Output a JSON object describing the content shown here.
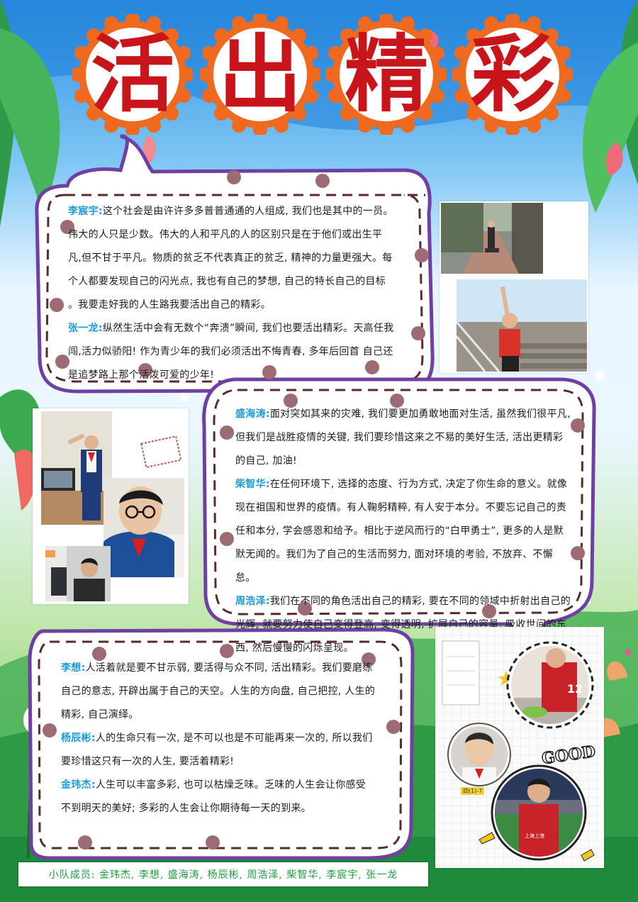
{
  "title": {
    "chars": [
      "活",
      "出",
      "精",
      "彩"
    ]
  },
  "colors": {
    "title_red": "#c8141b",
    "gear_orange": "#ef6a1f",
    "name_blue": "#1a9bd7",
    "frame_purple": "#6f3fa3",
    "dot_mauve": "#9c6b73",
    "footer_green": "#1e9c3e"
  },
  "box1": {
    "entries": [
      {
        "name": "李宸宇:",
        "text": "这个社会是由许许多多普普通通的人组成, 我们也是其中的一员。伟大的人只是少数。伟大的人和平凡的人的区别只是在于他们或出生平凡,但不甘于平凡。物质的贫乏不代表真正的贫乏, 精神的力量更强大。每个人都要发现自己的闪光点, 我也有自己的梦想, 自己的特长自己的目标 。我要走好我的人生路我要活出自己的精彩。"
      },
      {
        "name": "张一龙:",
        "text": "纵然生活中会有无数个“奔溃”瞬间, 我们也要活出精彩。天高任我闯,活力似骄阳! 作为青少年的我们必须活出不悔青春, 多年后回首 自己还是追梦路上那个活泼可爱的少年!"
      }
    ]
  },
  "box2": {
    "entries": [
      {
        "name": "盛海涛:",
        "text": "面对突如其来的灾难, 我们要更加勇敢地面对生活, 虽然我们很平凡, 但我们是战胜疫情的关键, 我们要珍惜这来之不易的美好生活, 活出更精彩的自己, 加油!"
      },
      {
        "name": "柴智华:",
        "text": "在任何环境下, 选择的态度、行为方式, 决定了你生命的意义。就像现在祖国和世界的疫情。有人鞠躬精粹, 有人安于本分。不要忘记自己的责任和本分, 学会感恩和给予。相比于逆风而行的“白甲勇士”, 更多的人是默默无闻的。我们为了自己的生活而努力, 面对环境的考验, 不放弃、不懈怠。"
      },
      {
        "name": "周浩泽:",
        "text": "我们在不同的角色活出自己的精彩, 要在不同的领域中折射出自己的光辉, 就要努力使自己变得登高, 变得透明, 扩展自己的容量, 吸收世间的东西, 然后慢慢的闪烁呈现。"
      }
    ]
  },
  "box3": {
    "entries": [
      {
        "name": "李想:",
        "text": "人活着就是要不甘示弱, 要活得与众不同, 活出精彩。我们要磨练自己的意志, 开辟出属于自己的天空。人生的方向盘, 自己把控, 人生的精彩, 自己演绎。"
      },
      {
        "name": "杨辰彬:",
        "text": "人的生命只有一次, 是不可以也是不可能再来一次的, 所以我们要珍惜这只有一次的人生, 要活着精彩!"
      },
      {
        "name": "金玮杰:",
        "text": "人生可以丰富多彩, 也可以枯燥乏味。乏味的人生会让你感受不到明天的美好; 多彩的人生会让你期待每一天的到来。"
      }
    ]
  },
  "photos": {
    "good_label": "GOOD",
    "jersey_number": "12",
    "shirt_text": "上海上港",
    "collage_caption": "四(1)-7"
  },
  "footer": {
    "text": "小队成员: 金玮杰, 李想, 盛海涛, 杨辰彬, 周浩泽, 柴智华, 李宸宇, 张一龙"
  }
}
